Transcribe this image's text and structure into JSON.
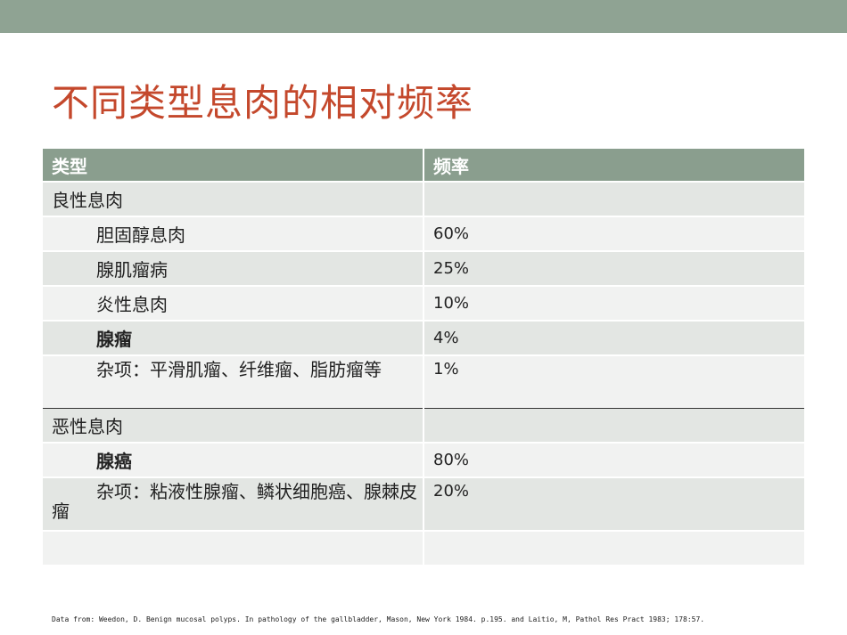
{
  "header": {
    "title": "不同类型息肉的相对频率"
  },
  "table": {
    "columns": [
      "类型",
      "频率"
    ],
    "rows": [
      [
        "良性息肉"
      ],
      [
        "胆固醇息肉",
        "60%"
      ],
      [
        "腺肌瘤病",
        "25%"
      ],
      [
        "炎性息肉",
        "10%"
      ],
      [
        "腺瘤",
        "4%"
      ],
      [
        "杂项：平滑肌瘤、纤维瘤、脂肪瘤等",
        "1%"
      ],
      [
        "恶性息肉"
      ],
      [
        "腺癌",
        "80%"
      ],
      [
        "杂项：粘液性腺瘤、鳞状细胞癌、腺棘皮瘤",
        "20%"
      ]
    ]
  },
  "footnote": "Data from: Weedon, D. Benign mucosal polyps. In pathology of the gallbladder, Mason, New York 1984. p.195. and Laitio, M, Pathol Res Pract 1983; 178:57."
}
